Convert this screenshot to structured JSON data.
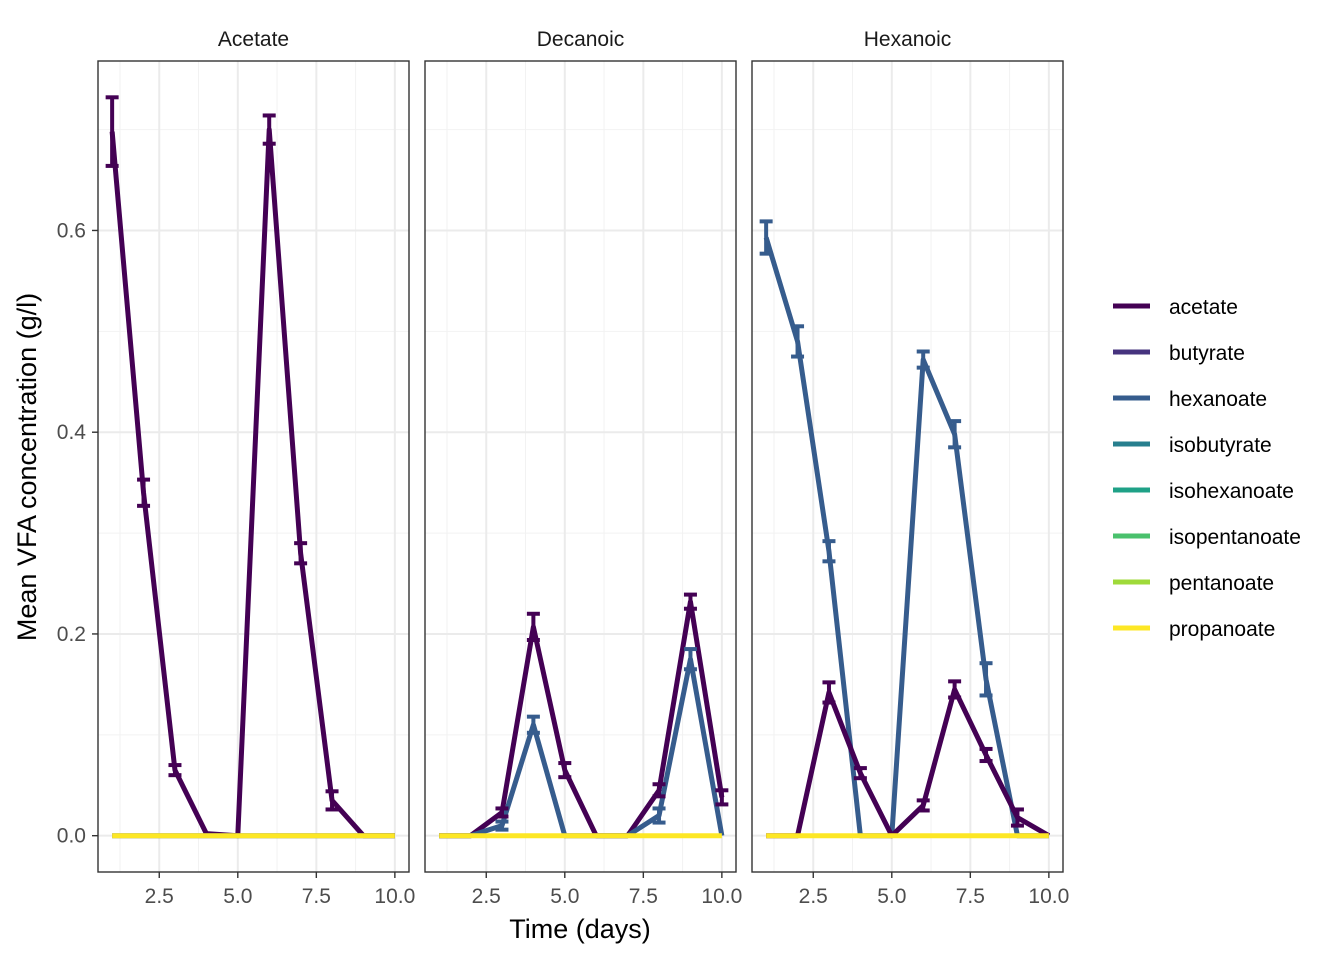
{
  "chart_data": {
    "type": "line",
    "xlabel": "Time (days)",
    "ylabel": "Mean VFA concentration (g/l)",
    "xlim": [
      0.55,
      10.45
    ],
    "ylim": [
      -0.036,
      0.768
    ],
    "x_ticks": [
      2.5,
      5.0,
      7.5,
      10.0
    ],
    "x_tick_labels": [
      "2.5",
      "5.0",
      "7.5",
      "10.0"
    ],
    "y_ticks": [
      0.0,
      0.2,
      0.4,
      0.6
    ],
    "y_tick_labels": [
      "0.0",
      "0.2",
      "0.4",
      "0.6"
    ],
    "grid": true,
    "legend_position": "right",
    "legend": [
      {
        "name": "acetate",
        "color": "#440154"
      },
      {
        "name": "butyrate",
        "color": "#46337E"
      },
      {
        "name": "hexanoate",
        "color": "#365C8D"
      },
      {
        "name": "isobutyrate",
        "color": "#277F8E"
      },
      {
        "name": "isohexanoate",
        "color": "#1FA187"
      },
      {
        "name": "isopentanoate",
        "color": "#4AC16D"
      },
      {
        "name": "pentanoate",
        "color": "#9FDA3A"
      },
      {
        "name": "propanoate",
        "color": "#FDE725"
      }
    ],
    "panels": [
      {
        "title": "Acetate",
        "series": [
          {
            "name": "acetate",
            "x": [
              1,
              2,
              3,
              4,
              5,
              6,
              7,
              8,
              9,
              10
            ],
            "y": [
              0.698,
              0.34,
              0.065,
              0.002,
              0.0,
              0.7,
              0.28,
              0.035,
              0.0,
              0.0
            ],
            "err": [
              0.034,
              0.013,
              0.005,
              0.0,
              0.0,
              0.014,
              0.01,
              0.009,
              0.0,
              0.0
            ]
          },
          {
            "name": "hexanoate",
            "x": [
              1,
              2,
              3,
              4,
              5,
              6,
              7,
              8,
              9,
              10
            ],
            "y": [
              0,
              0,
              0,
              0,
              0,
              0,
              0,
              0,
              0,
              0
            ],
            "err": [
              0,
              0,
              0,
              0,
              0,
              0,
              0,
              0,
              0,
              0
            ]
          },
          {
            "name": "propanoate",
            "x": [
              1,
              2,
              3,
              4,
              5,
              6,
              7,
              8,
              9,
              10
            ],
            "y": [
              0,
              0,
              0,
              0,
              0,
              0,
              0,
              0,
              0,
              0
            ],
            "err": [
              0,
              0,
              0,
              0,
              0,
              0,
              0,
              0,
              0,
              0
            ]
          }
        ]
      },
      {
        "title": "Decanoic",
        "series": [
          {
            "name": "acetate",
            "x": [
              1,
              2,
              3,
              4,
              5,
              6,
              7,
              8,
              9,
              10
            ],
            "y": [
              0.0,
              0.0,
              0.023,
              0.207,
              0.065,
              0.0,
              0.0,
              0.045,
              0.232,
              0.038
            ],
            "err": [
              0,
              0,
              0.004,
              0.013,
              0.007,
              0,
              0,
              0.006,
              0.007,
              0.007
            ]
          },
          {
            "name": "hexanoate",
            "x": [
              1,
              2,
              3,
              4,
              5,
              6,
              7,
              8,
              9,
              10
            ],
            "y": [
              0.0,
              0.0,
              0.01,
              0.11,
              0.0,
              0.0,
              0.0,
              0.02,
              0.175,
              0.0
            ],
            "err": [
              0,
              0,
              0.004,
              0.008,
              0,
              0,
              0,
              0.007,
              0.01,
              0
            ]
          },
          {
            "name": "propanoate",
            "x": [
              1,
              2,
              3,
              4,
              5,
              6,
              7,
              8,
              9,
              10
            ],
            "y": [
              0,
              0,
              0,
              0,
              0,
              0,
              0,
              0,
              0,
              0
            ],
            "err": [
              0,
              0,
              0,
              0,
              0,
              0,
              0,
              0,
              0,
              0
            ]
          }
        ]
      },
      {
        "title": "Hexanoic",
        "series": [
          {
            "name": "hexanoate",
            "x": [
              1,
              2,
              3,
              4,
              5,
              6,
              7,
              8,
              9,
              10
            ],
            "y": [
              0.593,
              0.49,
              0.282,
              0.0,
              0.0,
              0.472,
              0.398,
              0.155,
              0.0,
              0.0
            ],
            "err": [
              0.016,
              0.015,
              0.01,
              0,
              0,
              0.008,
              0.013,
              0.016,
              0,
              0
            ]
          },
          {
            "name": "acetate",
            "x": [
              1,
              2,
              3,
              4,
              5,
              6,
              7,
              8,
              9,
              10
            ],
            "y": [
              0.0,
              0.0,
              0.142,
              0.062,
              0.0,
              0.03,
              0.145,
              0.08,
              0.018,
              0.0
            ],
            "err": [
              0,
              0,
              0.01,
              0.005,
              0,
              0.005,
              0.008,
              0.006,
              0.008,
              0
            ]
          },
          {
            "name": "propanoate",
            "x": [
              1,
              2,
              3,
              4,
              5,
              6,
              7,
              8,
              9,
              10
            ],
            "y": [
              0,
              0,
              0,
              0,
              0,
              0,
              0,
              0,
              0,
              0
            ],
            "err": [
              0,
              0,
              0,
              0,
              0,
              0,
              0,
              0,
              0,
              0
            ]
          }
        ]
      }
    ]
  }
}
